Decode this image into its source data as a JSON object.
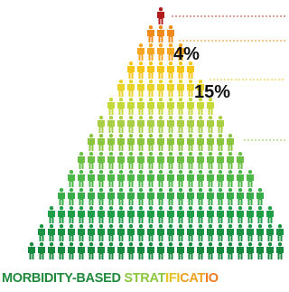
{
  "labels": [
    "4%",
    "15%"
  ],
  "footer": {
    "parts": [
      "MORBIDITY-BASED ",
      "STRAT",
      "IFI",
      "CAT",
      "IO"
    ]
  }
}
